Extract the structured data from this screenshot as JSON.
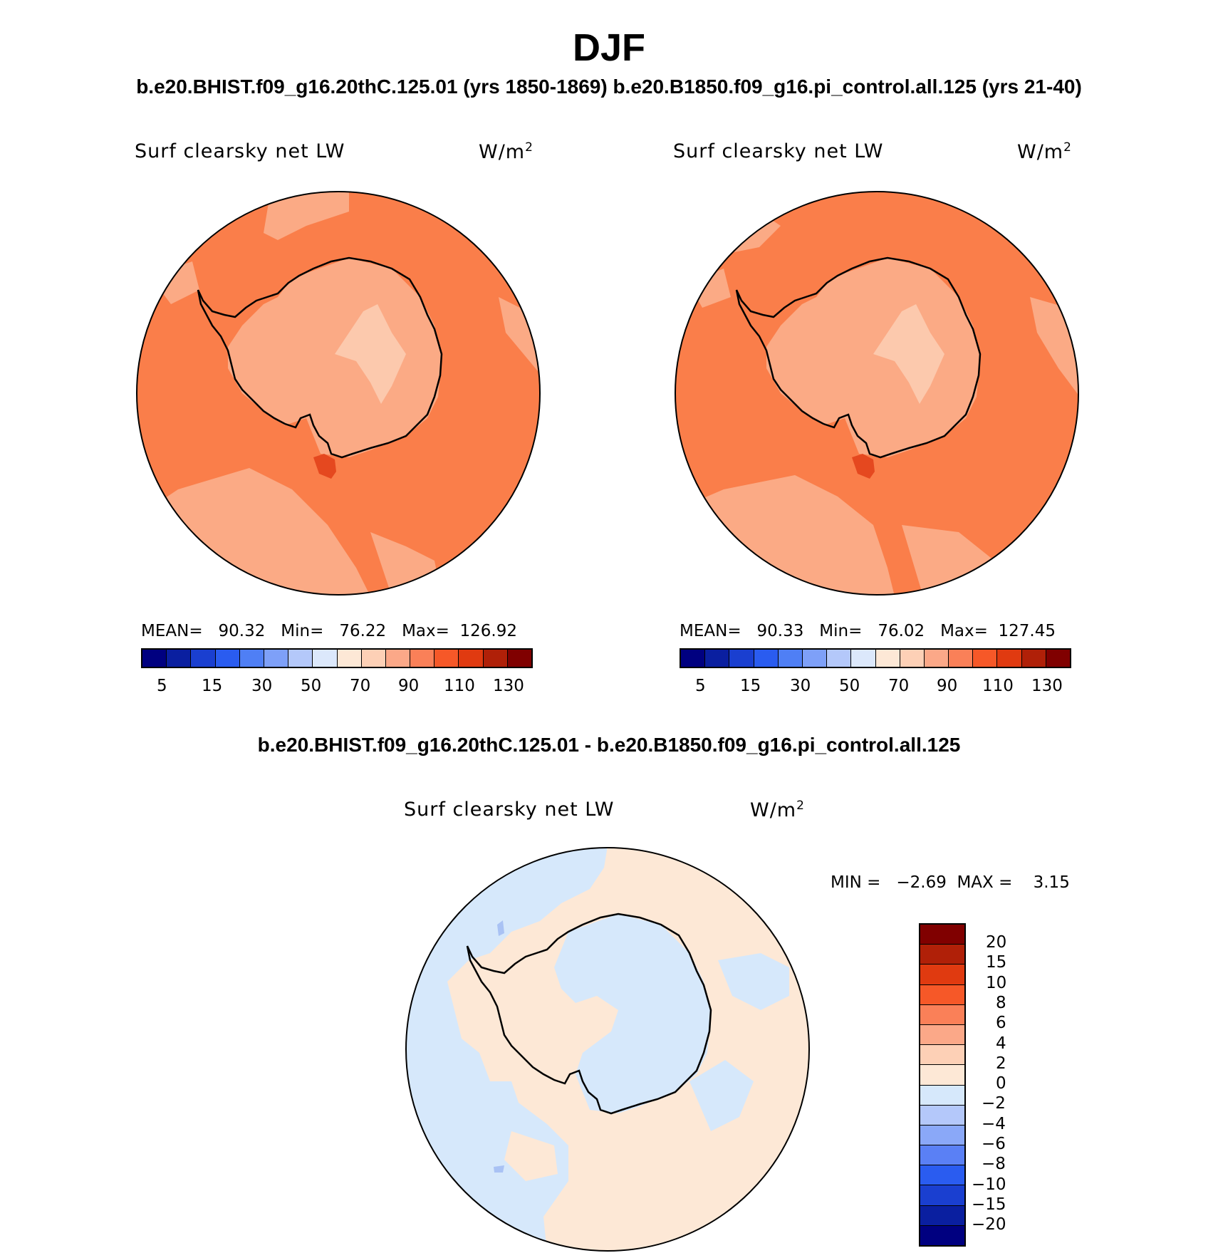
{
  "figure": {
    "season": "DJF",
    "header": "b.e20.BHIST.f09_g16.20thC.125.01 (yrs 1850-1869)  b.e20.B1850.f09_g16.pi_control.all.125 (yrs 21-40)",
    "diff_header": "b.e20.BHIST.f09_g16.20thC.125.01 - b.e20.B1850.f09_g16.pi_control.all.125"
  },
  "panels": [
    {
      "title": "Surf clearsky net LW",
      "units_base": "W/m",
      "units_sup": "2",
      "stats": "MEAN=   90.32   Min=   76.22   Max=  126.92"
    },
    {
      "title": "Surf clearsky net LW",
      "units_base": "W/m",
      "units_sup": "2",
      "stats": "MEAN=   90.33   Min=   76.02   Max=  127.45"
    }
  ],
  "diff_panel": {
    "title": "Surf clearsky net LW",
    "units_base": "W/m",
    "units_sup": "2",
    "stats": "MIN =   −2.69  MAX =    3.15"
  },
  "colorbar_main": {
    "colors": [
      "#000080",
      "#0a1fa0",
      "#1a3fd0",
      "#2a5cf0",
      "#4f7ff5",
      "#7ea0f8",
      "#b4c8fa",
      "#dce8fb",
      "#fde8d6",
      "#fdd0b6",
      "#fba888",
      "#fa8058",
      "#f65828",
      "#e03a10",
      "#b02008",
      "#800000"
    ],
    "labels": [
      "5",
      "15",
      "30",
      "50",
      "70",
      "90",
      "110",
      "130"
    ]
  },
  "colorbar_diff": {
    "colors": [
      "#800000",
      "#b02008",
      "#e03a10",
      "#f65828",
      "#fa8058",
      "#fba888",
      "#fdd0b6",
      "#fde8d6",
      "#d6e8fb",
      "#b4c8fa",
      "#8aa8f8",
      "#5a80f5",
      "#2a5cf0",
      "#1a3fd0",
      "#0a1fa0",
      "#000080"
    ],
    "labels": [
      "20",
      "15",
      "10",
      "8",
      "6",
      "4",
      "2",
      "0",
      "−2",
      "−4",
      "−6",
      "−8",
      "−10",
      "−15",
      "−20"
    ]
  },
  "map_colors": {
    "ocean": "#fa7e4a",
    "light": "#fbaa85",
    "pale": "#fcc9ad",
    "dark": "#e5481f",
    "diff_blue": "#d6e8fb",
    "diff_peach": "#fde8d6",
    "diff_blue2": "#a9c2f4"
  }
}
